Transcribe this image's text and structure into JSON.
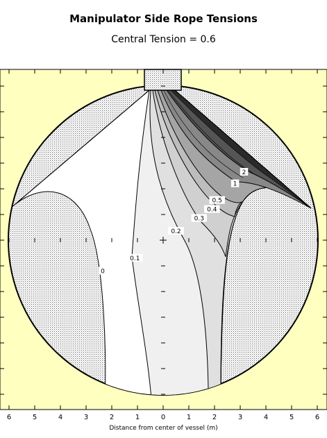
{
  "chart_data": {
    "type": "contour",
    "title": "Manipulator Side Rope Tensions",
    "subtitle": "Central Tension = 0.6",
    "xlabel": "Distance from center of vessel (m)",
    "x_tick_labels": [
      "6",
      "5",
      "4",
      "3",
      "2",
      "1",
      "0",
      "1",
      "2",
      "3",
      "4",
      "5",
      "6"
    ],
    "xlim": [
      -6,
      6
    ],
    "contour_levels": [
      "0",
      "0.1",
      "0.2",
      "0.3",
      "0.4",
      "0.5",
      "1",
      "2"
    ],
    "contour_label_points": [
      {
        "label": "0",
        "x": -2.35,
        "y": -1.2
      },
      {
        "label": "0.1",
        "x": -1.1,
        "y": -0.7
      },
      {
        "label": "0.2",
        "x": 0.5,
        "y": 0.35
      },
      {
        "label": "0.3",
        "x": 1.4,
        "y": 0.85
      },
      {
        "label": "0.4",
        "x": 1.9,
        "y": 1.2
      },
      {
        "label": "0.5",
        "x": 2.1,
        "y": 1.55
      },
      {
        "label": "1",
        "x": 2.8,
        "y": 2.2
      },
      {
        "label": "2",
        "x": 3.15,
        "y": 2.65
      }
    ],
    "colors": {
      "background": "#ffffc0",
      "vessel_fill": "#ffffff",
      "darkest": "#222222"
    }
  }
}
